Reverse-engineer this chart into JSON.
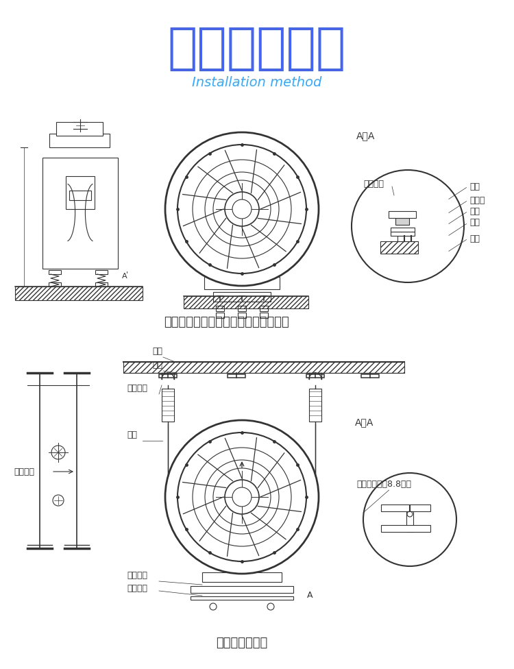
{
  "title_zh": "安装方式示意",
  "title_en": "Installation method",
  "subtitle1": "轴流机风机落地安装（带弹簧减振器）",
  "subtitle2": "轴流式风机吊装",
  "title_en_color": "#33aaff",
  "bg_color": "#ffffff",
  "line_color": "#333333",
  "top_aa_labels": [
    "螺栓",
    "减震器",
    "压板",
    "螺栓",
    "基础"
  ],
  "top_aa_label_left": "风机底座",
  "bot_aa_label": "高强度螺栓（8.8级）",
  "label_jichi": "基础",
  "label_diaogou": "吊钩",
  "label_jianzhen": "减振吊钩",
  "label_diaogan": "吊杆",
  "label_dijiао": "风机底脚",
  "label_caogangzhijia": "槽钢支架",
  "label_qiliu": "气流方向"
}
